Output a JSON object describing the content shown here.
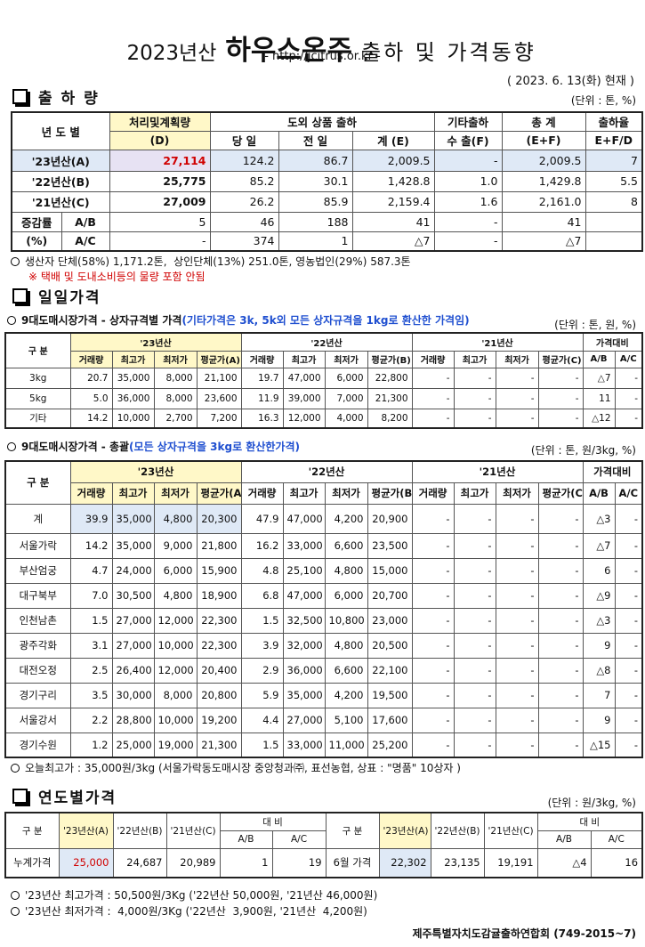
{
  "header": {
    "title_year": "2023년산",
    "title_main": "하우스온주",
    "title_rest": "출하 및 가격동향",
    "url": "- http://jcitrus.or.kr -",
    "date": "( 2023. 6. 13(화) 현재 )"
  },
  "shipment": {
    "title": "출 하 량",
    "unit": "(단위 : 톤, %)",
    "header": [
      [
        "년 도 별",
        "처리및계획량",
        "도외 상품 출하",
        "기타출하",
        "총 계",
        "출하율"
      ],
      [
        "(D)",
        "당 일",
        "전 일",
        "계 (E)",
        "수 출(F)",
        "(E+F)",
        "E+F/D"
      ]
    ],
    "rows": [
      [
        "'23년산(A)",
        "27,114",
        "124.2",
        "86.7",
        "2,009.5",
        "-",
        "2,009.5",
        "7"
      ],
      [
        "'22년산(B)",
        "25,775",
        "85.2",
        "30.1",
        "1,428.8",
        "1.0",
        "1,429.8",
        "5.5"
      ],
      [
        "'21년산(C)",
        "27,009",
        "26.2",
        "85.9",
        "2,159.4",
        "1.6",
        "2,161.0",
        "8"
      ],
      [
        "증감률",
        "A/B",
        "5",
        "46",
        "188",
        "41",
        "-",
        "41"
      ],
      [
        "(%)",
        "A/C",
        "-",
        "374",
        "1",
        "△7",
        "-",
        "△7"
      ]
    ],
    "notes": [
      "생산자 단체(58%) 1,171.2톤,  상인단체(13%) 251.0톤, 영농법인(29%) 587.3톤",
      "※ 택배 및 도내소비등의 물량 포함 안됨"
    ]
  },
  "daily": {
    "title": "일일가격",
    "by_box": {
      "subtitle": "9대도매시장가격 - 상자규격별 가격",
      "subtitle_note": "(기타가격은 3k, 5k외 모든 상자규격을 1kg로 환산한 가격임)",
      "unit": "(단위 : 톤, 원, %)",
      "header": [
        [
          "구 분",
          "'23년산",
          "'22년산",
          "'21년산",
          "가격대비"
        ],
        [
          "거래량",
          "최고가",
          "최저가",
          "평균가(A)",
          "거래량",
          "최고가",
          "최저가",
          "평균가(B)",
          "거래량",
          "최고가",
          "최저가",
          "평균가(C)",
          "A/B",
          "A/C"
        ]
      ],
      "rows": [
        [
          "3kg",
          "20.7",
          "35,000",
          "8,000",
          "21,100",
          "19.7",
          "47,000",
          "6,000",
          "22,800",
          "-",
          "-",
          "-",
          "-",
          "△7",
          "-"
        ],
        [
          "5kg",
          "5.0",
          "36,000",
          "8,000",
          "23,600",
          "11.9",
          "39,000",
          "7,000",
          "21,300",
          "-",
          "-",
          "-",
          "-",
          "11",
          "-"
        ],
        [
          "기타",
          "14.2",
          "10,000",
          "2,700",
          "7,200",
          "16.3",
          "12,000",
          "4,000",
          "8,200",
          "-",
          "-",
          "-",
          "-",
          "△12",
          "-"
        ]
      ]
    },
    "total": {
      "subtitle": "9대도매시장가격 - 총괄",
      "subtitle_note": "(모든 상자규격을 3kg로 환산한가격)",
      "unit": "(단위 : 톤, 원/3kg, %)",
      "header": [
        [
          "구 분",
          "'23년산",
          "'22년산",
          "'21년산",
          "가격대비"
        ],
        [
          "거래량",
          "최고가",
          "최저가",
          "평균가(A)",
          "거래량",
          "최고가",
          "최저가",
          "평균가(B)",
          "거래량",
          "최고가",
          "최저가",
          "평균가(C)",
          "A/B",
          "A/C"
        ]
      ],
      "rows": [
        [
          "계",
          "39.9",
          "35,000",
          "4,800",
          "20,300",
          "47.9",
          "47,000",
          "4,200",
          "20,900",
          "-",
          "-",
          "-",
          "-",
          "△3",
          "-"
        ],
        [
          "서울가락",
          "14.2",
          "35,000",
          "9,000",
          "21,800",
          "16.2",
          "33,000",
          "6,600",
          "23,500",
          "-",
          "-",
          "-",
          "-",
          "△7",
          "-"
        ],
        [
          "부산엄궁",
          "4.7",
          "24,000",
          "6,000",
          "15,900",
          "4.8",
          "25,100",
          "4,800",
          "15,000",
          "-",
          "-",
          "-",
          "-",
          "6",
          "-"
        ],
        [
          "대구북부",
          "7.0",
          "30,500",
          "4,800",
          "18,900",
          "6.8",
          "47,000",
          "6,000",
          "20,700",
          "-",
          "-",
          "-",
          "-",
          "△9",
          "-"
        ],
        [
          "인천남촌",
          "1.5",
          "27,000",
          "12,000",
          "22,300",
          "1.5",
          "32,500",
          "10,800",
          "23,000",
          "-",
          "-",
          "-",
          "-",
          "△3",
          "-"
        ],
        [
          "광주각화",
          "3.1",
          "27,000",
          "10,000",
          "22,300",
          "3.9",
          "32,000",
          "4,800",
          "20,500",
          "-",
          "-",
          "-",
          "-",
          "9",
          "-"
        ],
        [
          "대전오정",
          "2.5",
          "26,400",
          "12,000",
          "20,400",
          "2.9",
          "36,000",
          "6,600",
          "22,100",
          "-",
          "-",
          "-",
          "-",
          "△8",
          "-"
        ],
        [
          "경기구리",
          "3.5",
          "30,000",
          "8,000",
          "20,800",
          "5.9",
          "35,000",
          "4,200",
          "19,500",
          "-",
          "-",
          "-",
          "-",
          "7",
          "-"
        ],
        [
          "서울강서",
          "2.2",
          "28,800",
          "10,000",
          "19,200",
          "4.4",
          "27,000",
          "5,100",
          "17,600",
          "-",
          "-",
          "-",
          "-",
          "9",
          "-"
        ],
        [
          "경기수원",
          "1.2",
          "25,000",
          "19,000",
          "21,300",
          "1.5",
          "33,000",
          "11,000",
          "25,200",
          "-",
          "-",
          "-",
          "-",
          "△15",
          "-"
        ]
      ],
      "note": "오늘최고가 : 35,000원/3kg (서울가락동도매시장 중앙청과㈜, 표선농협, 상표 : \"명품\" 10상자 )"
    }
  },
  "yearly": {
    "title": "연도별가격",
    "unit": "(단위 : 원/3kg, %)",
    "header": [
      [
        "구 분",
        "'23년산(A)",
        "'22년산(B)",
        "'21년산(C)",
        "대 비",
        "구 분",
        "'23년산(A)",
        "'22년산(B)",
        "'21년산(C)",
        "대 비"
      ],
      [
        "A/B",
        "A/C",
        "A/B",
        "A/C"
      ]
    ],
    "rows": [
      [
        "누계가격",
        "25,000",
        "24,687",
        "20,989",
        "1",
        "19",
        "6월 가격",
        "22,302",
        "23,135",
        "19,191",
        "△4",
        "16"
      ]
    ],
    "notes": [
      "'23년산 최고가격 : 50,500원/3Kg ('22년산 50,000원, '21년산 46,000원)",
      "'23년산 최저가격 :  4,000원/3Kg ('22년산  3,900원, '21년산  4,200원)"
    ]
  },
  "footer": "제주특별자치도감귤출하연합회 (749-2015~7)"
}
